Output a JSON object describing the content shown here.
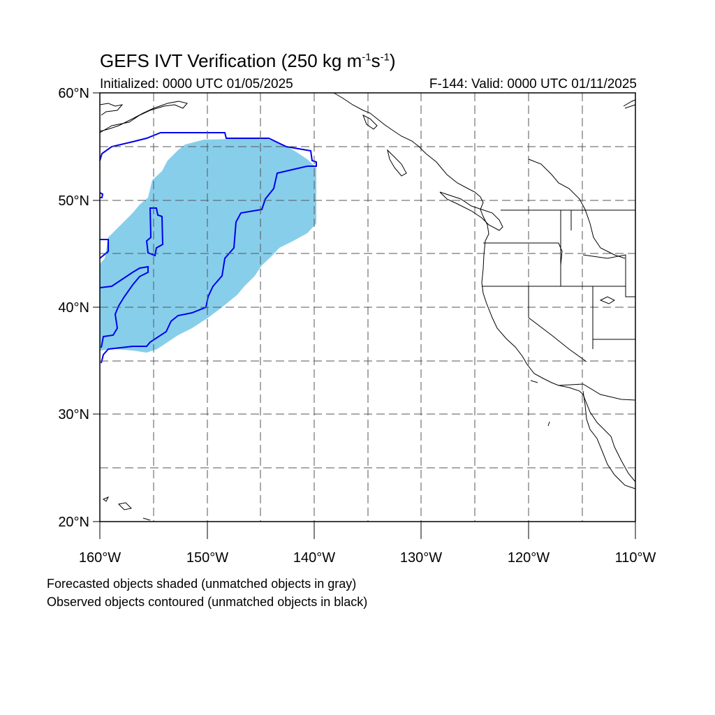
{
  "title": {
    "prefix": "GEFS IVT Verification (250 kg m",
    "exp1": "-1",
    "mid": "s",
    "exp2": "-1",
    "suffix": ")"
  },
  "initialized": "Initialized: 0000 UTC 01/05/2025",
  "valid": "F-144: Valid: 0000 UTC 01/11/2025",
  "lat_labels": [
    "60°N",
    "50°N",
    "40°N",
    "30°N",
    "20°N"
  ],
  "lon_labels": [
    "160°W",
    "150°W",
    "140°W",
    "130°W",
    "120°W",
    "110°W"
  ],
  "notes": {
    "forecast": "Forecasted objects shaded (unmatched objects in gray)",
    "observed": "Observed objects contoured (unmatched objects in black)"
  },
  "colors": {
    "forecast_fill": "#87ceeb",
    "observed_contour": "#0000ee",
    "coastline": "#000000",
    "grid": "#555555"
  },
  "map": {
    "extent": {
      "lon_min": -160,
      "lon_max": -110,
      "lat_min": 20,
      "lat_max": 60
    },
    "grid_interval_deg": 5
  }
}
